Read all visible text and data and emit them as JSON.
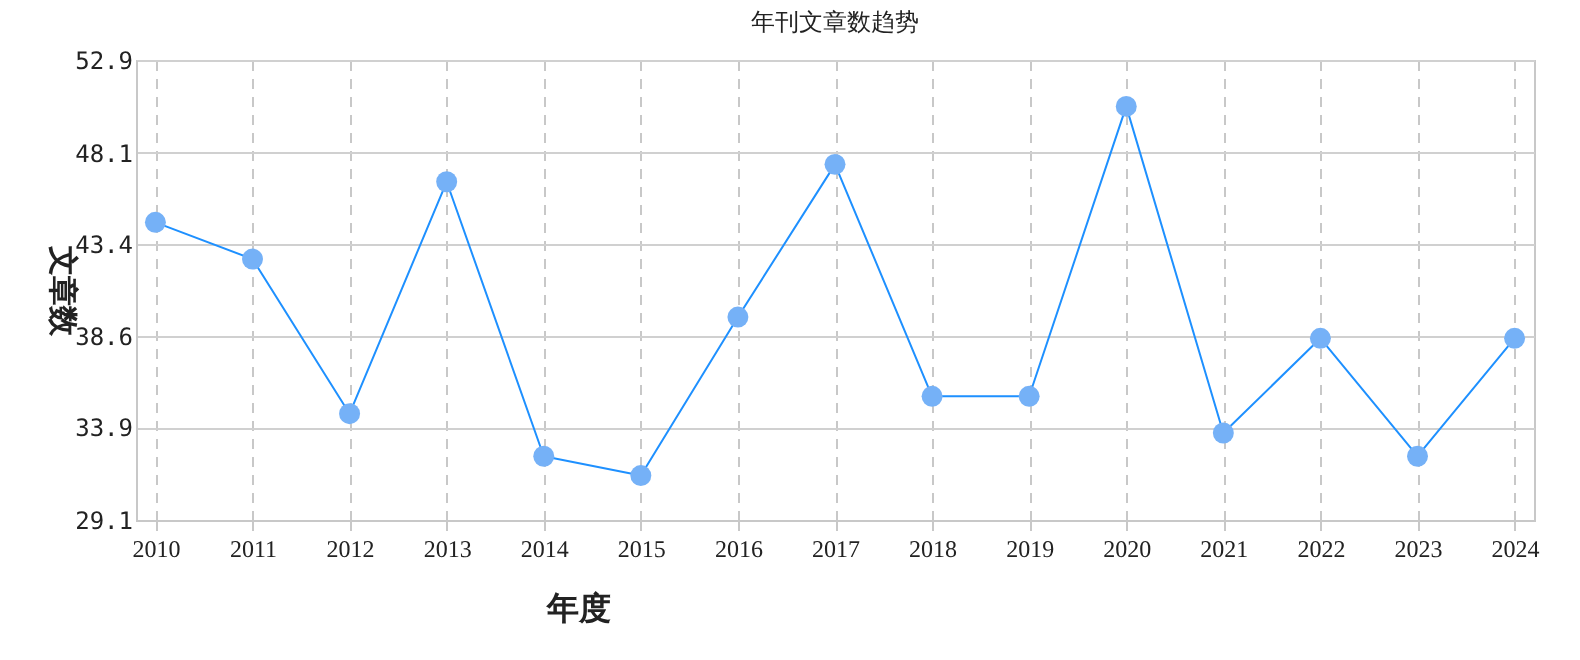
{
  "chart_data": {
    "type": "line",
    "title": "年刊文章数趋势",
    "xlabel": "年度",
    "ylabel": "文章数",
    "categories": [
      "2010",
      "2011",
      "2012",
      "2013",
      "2014",
      "2015",
      "2016",
      "2017",
      "2018",
      "2019",
      "2020",
      "2021",
      "2022",
      "2023",
      "2024"
    ],
    "series": [
      {
        "color": "#1e90ff",
        "values": [
          44.5,
          42.6,
          34.6,
          46.6,
          32.4,
          31.4,
          39.6,
          47.5,
          35.5,
          35.5,
          50.5,
          33.6,
          38.5,
          32.4,
          38.5
        ]
      }
    ],
    "ylim": [
      29.1,
      52.9
    ],
    "yticks": [
      29.1,
      33.9,
      38.6,
      43.4,
      48.1,
      52.9
    ],
    "grid": true,
    "marker": "circle"
  }
}
